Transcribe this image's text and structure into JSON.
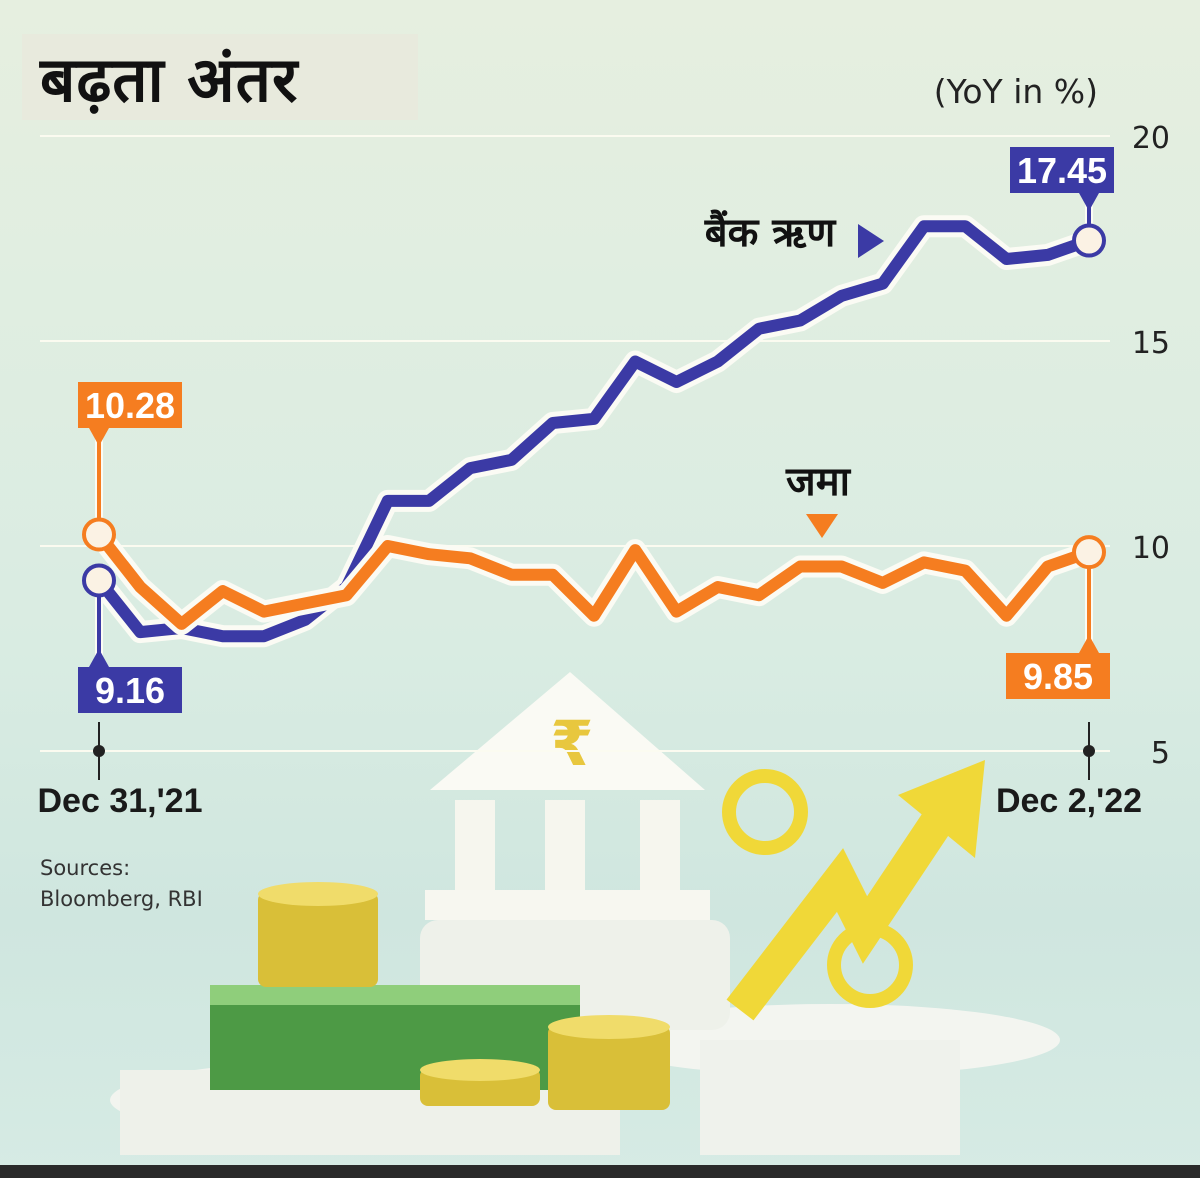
{
  "title": "बढ़ता अंतर",
  "unit_label": "(YoY in %)",
  "sources": {
    "line1": "Sources:",
    "line2": "Bloomberg, RBI"
  },
  "colors": {
    "loan": "#3b3aa5",
    "deposit": "#f57d20",
    "grid": "#fbfbf0",
    "callout_text": "#ffffff",
    "text": "#111111"
  },
  "chart_data": {
    "type": "line",
    "title": "बढ़ता अंतर",
    "ylabel": "(YoY in %)",
    "ylim": [
      5,
      20
    ],
    "yticks": [
      5,
      10,
      15,
      20
    ],
    "x_range_labels": [
      "Dec 31,'21",
      "Dec 2,'22"
    ],
    "grid": "horizontal",
    "series": [
      {
        "name": "बैंक ऋण",
        "color": "#3b3aa5",
        "values": [
          9.16,
          7.9,
          8.0,
          7.8,
          7.8,
          8.2,
          9.0,
          11.1,
          11.1,
          11.9,
          12.1,
          13.0,
          13.1,
          14.5,
          14.0,
          14.5,
          15.3,
          15.5,
          16.1,
          16.4,
          17.8,
          17.8,
          17.0,
          17.1,
          17.45
        ],
        "start_label": "9.16",
        "end_label": "17.45",
        "annotation": "बैंक ऋण"
      },
      {
        "name": "जमा",
        "color": "#f57d20",
        "values": [
          10.28,
          9.0,
          8.1,
          8.9,
          8.4,
          8.6,
          8.8,
          10.0,
          9.8,
          9.7,
          9.3,
          9.3,
          8.3,
          9.9,
          8.4,
          9.0,
          8.8,
          9.5,
          9.5,
          9.1,
          9.6,
          9.4,
          8.3,
          9.5,
          9.85
        ],
        "start_label": "10.28",
        "end_label": "9.85",
        "annotation": "जमा"
      }
    ]
  }
}
